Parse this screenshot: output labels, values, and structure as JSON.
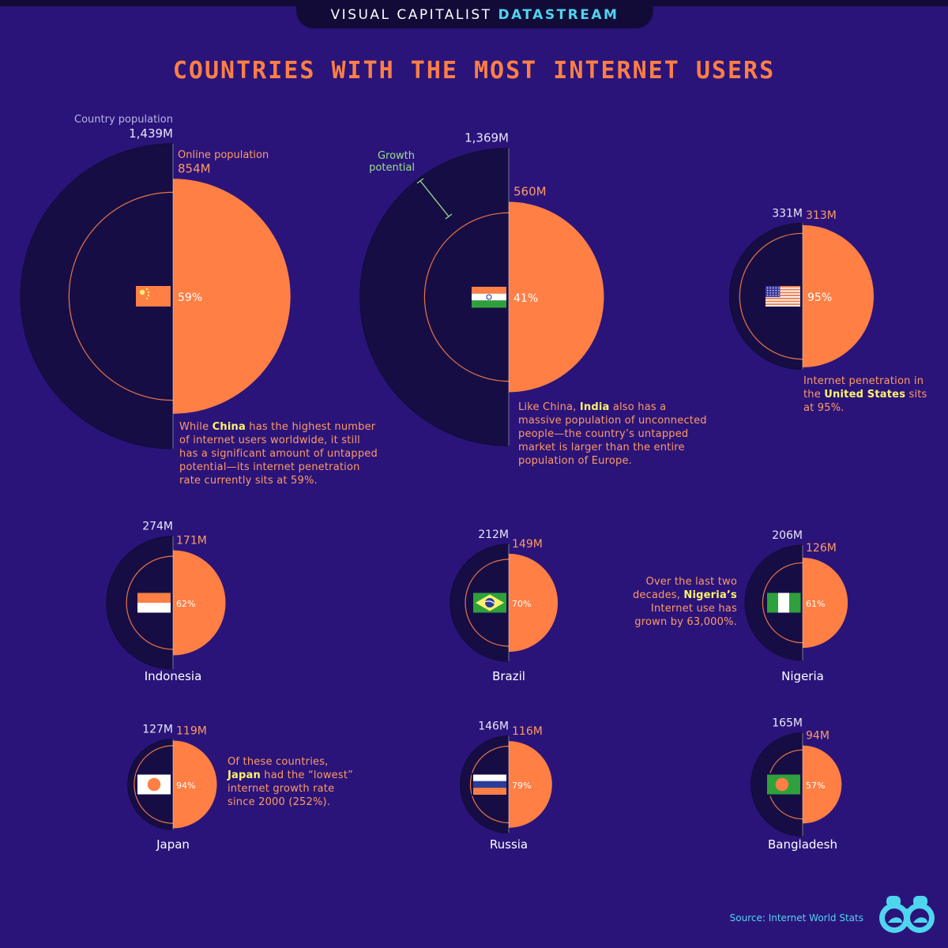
{
  "header": {
    "brand_prefix": "VISUAL CAPITALIST",
    "brand_suffix": "DATASTREAM",
    "title": "COUNTRIES WITH THE MOST INTERNET USERS"
  },
  "colors": {
    "background": "#2a147a",
    "country_population": "#170d45",
    "online_population": "#ff7f45",
    "highlight": "#fff36b",
    "growth_line": "#9be08a",
    "accent": "#4fd5ee"
  },
  "legend": {
    "country_population": "Country population",
    "online_population": "Online population",
    "growth_potential_line1": "Growth",
    "growth_potential_line2": "potential"
  },
  "chart_data": {
    "type": "nested half-circle comparison",
    "units": "millions of people",
    "countries": [
      {
        "name": "China",
        "population": 1439,
        "online": 854,
        "penetration": 59,
        "population_label": "1,439M",
        "online_label": "854M",
        "penetration_label": "59%",
        "flag": "china-flag"
      },
      {
        "name": "India",
        "population": 1369,
        "online": 560,
        "penetration": 41,
        "population_label": "1,369M",
        "online_label": "560M",
        "penetration_label": "41%",
        "flag": "india-flag"
      },
      {
        "name": "United States",
        "population": 331,
        "online": 313,
        "penetration": 95,
        "population_label": "331M",
        "online_label": "313M",
        "penetration_label": "95%",
        "flag": "usa-flag"
      },
      {
        "name": "Indonesia",
        "population": 274,
        "online": 171,
        "penetration": 62,
        "population_label": "274M",
        "online_label": "171M",
        "penetration_label": "62%",
        "flag": "indonesia-flag"
      },
      {
        "name": "Brazil",
        "population": 212,
        "online": 149,
        "penetration": 70,
        "population_label": "212M",
        "online_label": "149M",
        "penetration_label": "70%",
        "flag": "brazil-flag"
      },
      {
        "name": "Nigeria",
        "population": 206,
        "online": 126,
        "penetration": 61,
        "population_label": "206M",
        "online_label": "126M",
        "penetration_label": "61%",
        "flag": "nigeria-flag"
      },
      {
        "name": "Japan",
        "population": 127,
        "online": 119,
        "penetration": 94,
        "population_label": "127M",
        "online_label": "119M",
        "penetration_label": "94%",
        "flag": "japan-flag"
      },
      {
        "name": "Russia",
        "population": 146,
        "online": 116,
        "penetration": 79,
        "population_label": "146M",
        "online_label": "116M",
        "penetration_label": "79%",
        "flag": "russia-flag"
      },
      {
        "name": "Bangladesh",
        "population": 165,
        "online": 94,
        "penetration": 57,
        "population_label": "165M",
        "online_label": "94M",
        "penetration_label": "57%",
        "flag": "bangladesh-flag"
      }
    ]
  },
  "notes": {
    "china": {
      "pre": "While ",
      "hl": "China",
      "post": " has the highest number of internet users worldwide, it still has a significant amount of untapped potential—its internet penetration rate currently sits at 59%."
    },
    "india": {
      "pre": "Like China, ",
      "hl": "India",
      "post": " also has a massive population of unconnected people—the country’s untapped market is larger than the entire population of Europe."
    },
    "usa": {
      "pre": "Internet penetration in the ",
      "hl": "United States",
      "post": " sits at 95%."
    },
    "nigeria": {
      "pre": "Over the last two decades, ",
      "hl": "Nigeria’s",
      "post": " Internet use has grown by 63,000%."
    },
    "japan": {
      "pre": "Of these countries, ",
      "hl": "Japan",
      "post": " had the “lowest” internet growth rate since 2000 (252%)."
    }
  },
  "footer": {
    "source": "Source: Internet World Stats"
  }
}
